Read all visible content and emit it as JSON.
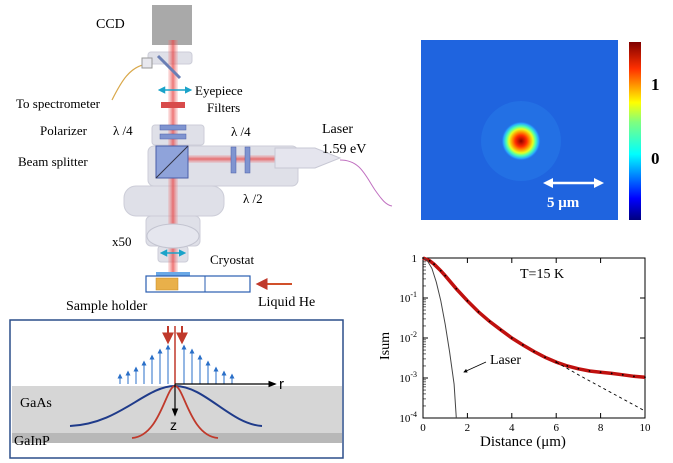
{
  "setup": {
    "ccd": "CCD",
    "to_spectrometer": "To spectrometer",
    "eyepiece": "Eyepiece",
    "filters": "Filters",
    "polarizer": "Polarizer",
    "lambda4_left": "λ /4",
    "lambda4_right": "λ /4",
    "lambda2": "λ /2",
    "beam_splitter": "Beam splitter",
    "laser": "Laser",
    "laser_energy": "1.59 eV",
    "objective": "x50",
    "cryostat": "Cryostat",
    "sample_holder": "Sample holder",
    "liquid_he": "Liquid He"
  },
  "sample": {
    "gaas": "GaAs",
    "gainp": "GaInP",
    "r_axis": "r",
    "z_axis": "z"
  },
  "image_panel": {
    "colorbar_ticks": [
      "1",
      "0"
    ],
    "scale_bar": "5 μm",
    "colors": {
      "background": "#1f64df",
      "spot_core": "#8b0000"
    }
  },
  "chart_data": {
    "type": "line",
    "annotation_temp": "T=15 K",
    "annotation_laser": "Laser",
    "xlabel": "Distance (μm)",
    "ylabel": "Isum",
    "y_scale": "log",
    "xlim": [
      0,
      10
    ],
    "ylim": [
      0.0001,
      1
    ],
    "x_ticks": [
      "0",
      "2",
      "4",
      "6",
      "8",
      "10"
    ],
    "y_ticks": [
      {
        "base": "1",
        "exp": ""
      },
      {
        "base": "10",
        "exp": "-1"
      },
      {
        "base": "10",
        "exp": "-2"
      },
      {
        "base": "10",
        "exp": "-3"
      },
      {
        "base": "10",
        "exp": "-4"
      }
    ],
    "series": [
      {
        "style": "thick red with black markers",
        "color": "#c0110f",
        "x": [
          0,
          0.3,
          0.5,
          0.8,
          1,
          1.5,
          2,
          2.5,
          3,
          3.5,
          4,
          4.5,
          5,
          5.5,
          6,
          6.5,
          7,
          7.5,
          8,
          8.5,
          9,
          9.5,
          10
        ],
        "y": [
          1,
          0.85,
          0.7,
          0.48,
          0.36,
          0.17,
          0.085,
          0.045,
          0.026,
          0.016,
          0.01,
          0.0067,
          0.0046,
          0.0033,
          0.0025,
          0.002,
          0.0017,
          0.0015,
          0.0014,
          0.0013,
          0.0012,
          0.0011,
          0.00105
        ]
      },
      {
        "style": "dashed black fit",
        "color": "#000000",
        "x": [
          6,
          7,
          8,
          9,
          10
        ],
        "y": [
          0.0025,
          0.0012,
          0.0006,
          0.0003,
          0.00015
        ]
      },
      {
        "style": "thin gray laser profile",
        "color": "#444444",
        "x": [
          0,
          0.2,
          0.4,
          0.6,
          0.8,
          1,
          1.2,
          1.4,
          1.5
        ],
        "y": [
          1,
          0.85,
          0.55,
          0.25,
          0.085,
          0.022,
          0.0045,
          0.0007,
          0.0001
        ]
      }
    ]
  }
}
